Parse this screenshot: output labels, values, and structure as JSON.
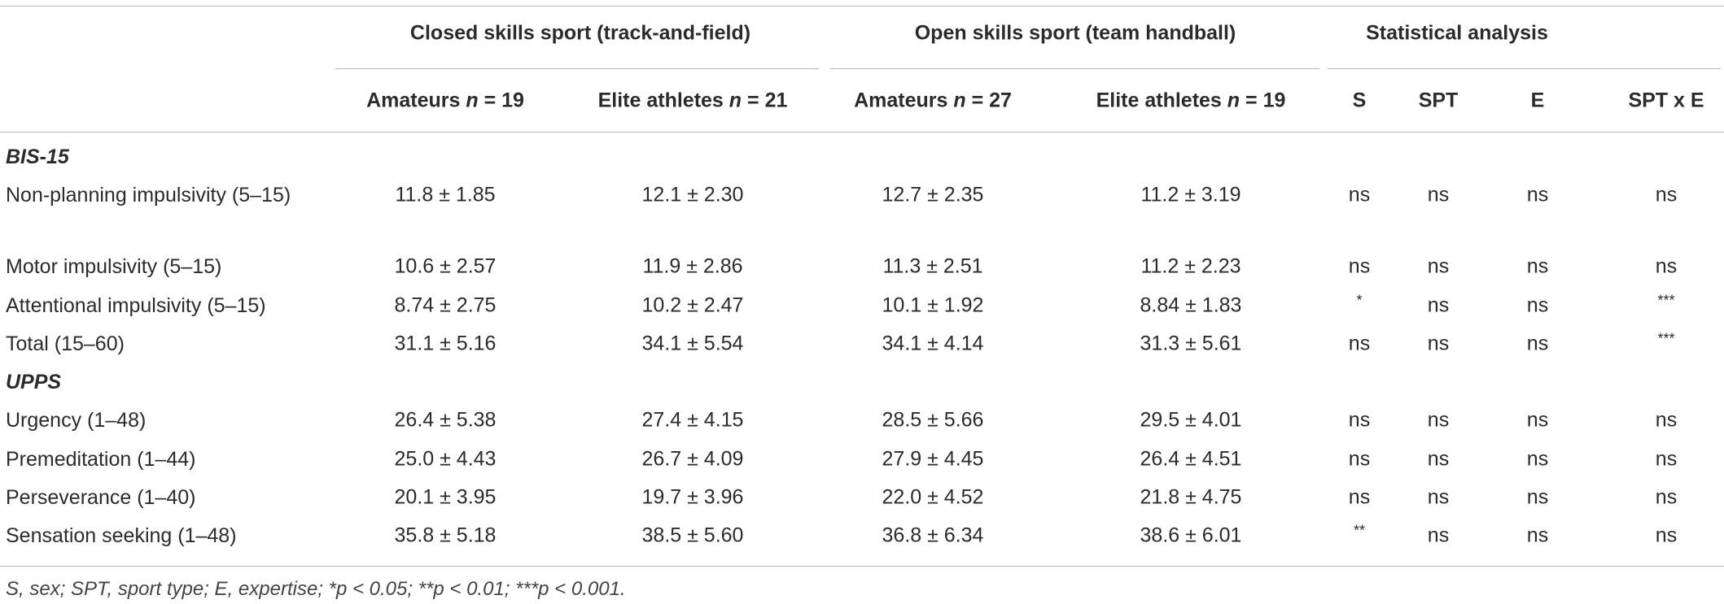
{
  "table": {
    "column_groups": [
      "Closed skills sport (track-and-field)",
      "Open skills sport (team handball)",
      "Statistical analysis"
    ],
    "columns": [
      [
        "Amateurs",
        "n",
        "= 19"
      ],
      [
        "Elite athletes",
        "n",
        "= 21"
      ],
      [
        "Amateurs",
        "n",
        "= 27"
      ],
      [
        "Elite athletes",
        "n",
        "= 19"
      ],
      [
        "S"
      ],
      [
        "SPT"
      ],
      [
        "E"
      ],
      [
        "SPT x E"
      ]
    ],
    "rows": [
      {
        "section": "BIS-15"
      },
      {
        "cells": [
          "Non-planning impulsivity (5–15)",
          "11.8 ± 1.85",
          "12.1 ± 2.30",
          "12.7 ± 2.35",
          "11.2 ± 3.19",
          "ns",
          "ns",
          "ns",
          "ns"
        ]
      },
      {
        "cells": [
          "Motor impulsivity (5–15)",
          "10.6 ± 2.57",
          "11.9 ± 2.86",
          "11.3 ± 2.51",
          "11.2 ± 2.23",
          "ns",
          "ns",
          "ns",
          "ns"
        ]
      },
      {
        "cells": [
          "Attentional impulsivity (5–15)",
          "8.74 ± 2.75",
          "10.2 ± 2.47",
          "10.1 ± 1.92",
          "8.84 ± 1.83",
          "*",
          "ns",
          "ns",
          "***"
        ]
      },
      {
        "cells": [
          "Total (15–60)",
          "31.1 ± 5.16",
          "34.1 ± 5.54",
          "34.1 ± 4.14",
          "31.3 ± 5.61",
          "ns",
          "ns",
          "ns",
          "***"
        ]
      },
      {
        "section": "UPPS"
      },
      {
        "cells": [
          "Urgency (1–48)",
          "26.4 ± 5.38",
          "27.4 ± 4.15",
          "28.5 ± 5.66",
          "29.5 ± 4.01",
          "ns",
          "ns",
          "ns",
          "ns"
        ]
      },
      {
        "cells": [
          "Premeditation (1–44)",
          "25.0 ± 4.43",
          "26.7 ± 4.09",
          "27.9 ± 4.45",
          "26.4 ± 4.51",
          "ns",
          "ns",
          "ns",
          "ns"
        ]
      },
      {
        "cells": [
          "Perseverance (1–40)",
          "20.1 ± 3.95",
          "19.7 ± 3.96",
          "22.0 ± 4.52",
          "21.8 ± 4.75",
          "ns",
          "ns",
          "ns",
          "ns"
        ]
      },
      {
        "cells": [
          "Sensation seeking (1–48)",
          "35.8 ± 5.18",
          "38.5 ± 5.60",
          "36.8 ± 6.34",
          "38.6 ± 6.01",
          "**",
          "ns",
          "ns",
          "ns"
        ]
      }
    ],
    "footnote": "S, sex; SPT, sport type; E, expertise; *p < 0.05; **p < 0.01; ***p < 0.001."
  }
}
